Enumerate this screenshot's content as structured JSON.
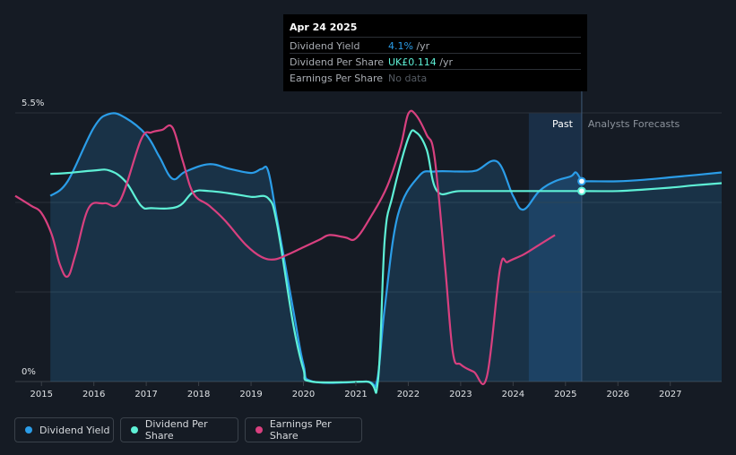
{
  "tooltip": {
    "date": "Apr 24 2025",
    "rows": [
      {
        "label": "Dividend Yield",
        "value": "4.1%",
        "unit": " /yr",
        "color": "#2b9de8"
      },
      {
        "label": "Dividend Per Share",
        "value": "UK£0.114",
        "unit": " /yr",
        "color": "#5ef0d6"
      },
      {
        "label": "Earnings Per Share",
        "value": "No data",
        "unit": "",
        "color": "#555b63"
      }
    ]
  },
  "region_labels": {
    "past": "Past",
    "forecast": "Analysts Forecasts"
  },
  "legend": [
    {
      "label": "Dividend Yield",
      "color": "#2b9de8"
    },
    {
      "label": "Dividend Per Share",
      "color": "#5ef0d6"
    },
    {
      "label": "Earnings Per Share",
      "color": "#d8407f"
    }
  ],
  "chart_data": {
    "type": "line",
    "y_top_label": "5.5%",
    "y_bottom_label": "0%",
    "ylim": [
      0,
      5.5
    ],
    "xlim": [
      2014.5,
      2027.98
    ],
    "x_ticks": [
      2015,
      2016,
      2017,
      2018,
      2019,
      2020,
      2021,
      2022,
      2023,
      2024,
      2025,
      2026,
      2027
    ],
    "forecast_start": 2025.31,
    "shaded_past_start": 2024.3,
    "grid": true,
    "series": [
      {
        "name": "Dividend Yield",
        "color": "#2b9de8",
        "area": true,
        "points": [
          [
            2015.17,
            3.8
          ],
          [
            2015.5,
            4.1
          ],
          [
            2016.0,
            5.2
          ],
          [
            2016.3,
            5.48
          ],
          [
            2016.6,
            5.4
          ],
          [
            2017.0,
            5.05
          ],
          [
            2017.25,
            4.6
          ],
          [
            2017.5,
            4.15
          ],
          [
            2017.75,
            4.3
          ],
          [
            2018.2,
            4.45
          ],
          [
            2018.6,
            4.35
          ],
          [
            2019.0,
            4.27
          ],
          [
            2019.2,
            4.35
          ],
          [
            2019.33,
            4.3
          ],
          [
            2019.5,
            3.3
          ],
          [
            2019.8,
            1.5
          ],
          [
            2020.0,
            0.35
          ],
          [
            2020.18,
            0
          ],
          [
            2021.2,
            0
          ],
          [
            2021.4,
            0
          ],
          [
            2021.55,
            1.5
          ],
          [
            2021.8,
            3.4
          ],
          [
            2022.2,
            4.2
          ],
          [
            2022.5,
            4.3
          ],
          [
            2023.0,
            4.3
          ],
          [
            2023.3,
            4.32
          ],
          [
            2023.7,
            4.5
          ],
          [
            2024.0,
            3.8
          ],
          [
            2024.2,
            3.52
          ],
          [
            2024.5,
            3.9
          ],
          [
            2024.8,
            4.1
          ],
          [
            2025.1,
            4.2
          ],
          [
            2025.2,
            4.28
          ],
          [
            2025.31,
            4.1
          ]
        ]
      },
      {
        "name": "Dividend Yield forecast",
        "color": "#2b9de8",
        "area": true,
        "points": [
          [
            2025.31,
            4.1
          ],
          [
            2025.5,
            4.1
          ],
          [
            2026.0,
            4.1
          ],
          [
            2026.5,
            4.13
          ],
          [
            2027.0,
            4.18
          ],
          [
            2027.5,
            4.23
          ],
          [
            2027.98,
            4.28
          ]
        ]
      },
      {
        "name": "Dividend Per Share",
        "color": "#5ef0d6",
        "area": false,
        "points": [
          [
            2015.17,
            4.25
          ],
          [
            2015.5,
            4.27
          ],
          [
            2016.0,
            4.32
          ],
          [
            2016.3,
            4.32
          ],
          [
            2016.6,
            4.1
          ],
          [
            2016.9,
            3.6
          ],
          [
            2017.1,
            3.55
          ],
          [
            2017.6,
            3.58
          ],
          [
            2017.9,
            3.88
          ],
          [
            2018.2,
            3.9
          ],
          [
            2018.6,
            3.85
          ],
          [
            2019.0,
            3.78
          ],
          [
            2019.33,
            3.75
          ],
          [
            2019.5,
            3.2
          ],
          [
            2019.8,
            1.2
          ],
          [
            2020.0,
            0.25
          ],
          [
            2020.15,
            0
          ],
          [
            2021.2,
            0
          ],
          [
            2021.42,
            0
          ],
          [
            2021.55,
            2.9
          ],
          [
            2021.7,
            3.8
          ],
          [
            2022.0,
            4.98
          ],
          [
            2022.15,
            5.1
          ],
          [
            2022.35,
            4.75
          ],
          [
            2022.55,
            3.9
          ],
          [
            2023.0,
            3.9
          ],
          [
            2024.0,
            3.9
          ],
          [
            2025.31,
            3.9
          ]
        ]
      },
      {
        "name": "Dividend Per Share forecast",
        "color": "#5ef0d6",
        "area": false,
        "points": [
          [
            2025.31,
            3.9
          ],
          [
            2026.0,
            3.9
          ],
          [
            2026.5,
            3.93
          ],
          [
            2027.0,
            3.97
          ],
          [
            2027.5,
            4.02
          ],
          [
            2027.98,
            4.06
          ]
        ]
      },
      {
        "name": "Earnings Per Share",
        "color": "#d8407f",
        "area": false,
        "points": [
          [
            2014.5,
            3.8
          ],
          [
            2014.8,
            3.6
          ],
          [
            2015.0,
            3.45
          ],
          [
            2015.2,
            3.0
          ],
          [
            2015.35,
            2.4
          ],
          [
            2015.5,
            2.15
          ],
          [
            2015.65,
            2.6
          ],
          [
            2015.9,
            3.55
          ],
          [
            2016.2,
            3.65
          ],
          [
            2016.5,
            3.7
          ],
          [
            2016.9,
            4.95
          ],
          [
            2017.1,
            5.1
          ],
          [
            2017.3,
            5.15
          ],
          [
            2017.5,
            5.2
          ],
          [
            2017.7,
            4.5
          ],
          [
            2017.9,
            3.85
          ],
          [
            2018.2,
            3.6
          ],
          [
            2018.5,
            3.3
          ],
          [
            2018.9,
            2.8
          ],
          [
            2019.2,
            2.55
          ],
          [
            2019.45,
            2.5
          ],
          [
            2019.7,
            2.6
          ],
          [
            2020.0,
            2.75
          ],
          [
            2020.3,
            2.9
          ],
          [
            2020.5,
            3.0
          ],
          [
            2020.8,
            2.95
          ],
          [
            2021.0,
            2.93
          ],
          [
            2021.3,
            3.4
          ],
          [
            2021.6,
            4.0
          ],
          [
            2021.85,
            4.8
          ],
          [
            2022.0,
            5.48
          ],
          [
            2022.15,
            5.45
          ],
          [
            2022.35,
            5.05
          ],
          [
            2022.5,
            4.6
          ],
          [
            2022.7,
            2.4
          ],
          [
            2022.85,
            0.6
          ],
          [
            2023.0,
            0.35
          ],
          [
            2023.25,
            0.2
          ],
          [
            2023.5,
            0.1
          ],
          [
            2023.75,
            2.3
          ],
          [
            2023.9,
            2.45
          ],
          [
            2024.2,
            2.6
          ],
          [
            2024.5,
            2.8
          ],
          [
            2024.8,
            3.0
          ]
        ]
      }
    ]
  }
}
